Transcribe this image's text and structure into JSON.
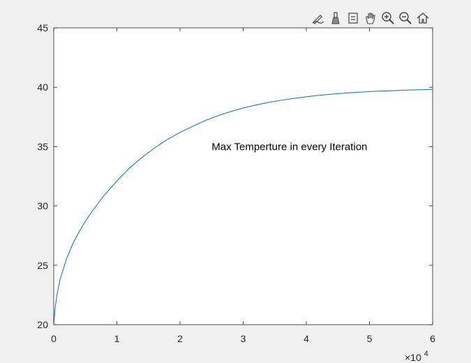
{
  "toolbar": {
    "tools": [
      {
        "name": "edit-plot-icon"
      },
      {
        "name": "brush-icon"
      },
      {
        "name": "data-tips-icon"
      },
      {
        "name": "pan-icon"
      },
      {
        "name": "zoom-in-icon"
      },
      {
        "name": "zoom-out-icon"
      },
      {
        "name": "home-icon"
      }
    ]
  },
  "colors": {
    "line": "#0072bd",
    "axes": "#262626",
    "plot_bg": "#ffffff",
    "figure_bg": "#f0f0f0"
  },
  "chart_data": {
    "type": "line",
    "title": "",
    "xlabel": "",
    "ylabel": "",
    "xlim": [
      0,
      60000
    ],
    "ylim": [
      20,
      45
    ],
    "xticks": [
      0,
      10000,
      20000,
      30000,
      40000,
      50000,
      60000
    ],
    "xtick_labels": [
      "0",
      "1",
      "2",
      "3",
      "4",
      "5",
      "6"
    ],
    "yticks": [
      20,
      25,
      30,
      35,
      40,
      45
    ],
    "ytick_labels": [
      "20",
      "25",
      "30",
      "35",
      "40",
      "45"
    ],
    "x_exponent_label": {
      "base": "×10",
      "exponent": "4"
    },
    "grid": false,
    "annotation": {
      "text": "Max Temperture in every Iteration",
      "x": 25000,
      "y": 35
    },
    "series": [
      {
        "x": [
          0,
          200,
          500,
          1000,
          2000,
          3000,
          4000,
          5000,
          6000,
          8000,
          10000,
          12000,
          14000,
          16000,
          18000,
          20000,
          22000,
          24000,
          26000,
          28000,
          30000,
          32000,
          34000,
          36000,
          38000,
          40000,
          42000,
          44000,
          46000,
          48000,
          50000,
          52000,
          54000,
          56000,
          58000,
          60000
        ],
        "y": [
          20.0,
          21.3,
          22.5,
          23.8,
          25.5,
          26.8,
          27.8,
          28.7,
          29.5,
          30.9,
          32.1,
          33.2,
          34.1,
          34.9,
          35.6,
          36.2,
          36.7,
          37.2,
          37.6,
          37.95,
          38.25,
          38.5,
          38.72,
          38.9,
          39.06,
          39.2,
          39.32,
          39.42,
          39.5,
          39.57,
          39.63,
          39.68,
          39.72,
          39.76,
          39.79,
          39.82
        ]
      }
    ]
  }
}
